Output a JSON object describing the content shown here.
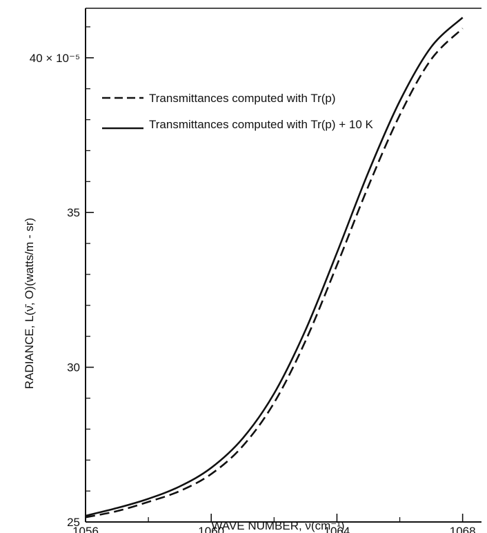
{
  "chart_data": {
    "type": "line",
    "title": "",
    "xlabel": "WAVE NUMBER, ν̄(cm⁻¹)",
    "ylabel": "RADIANCE, L(ν̄, O)(watts/m - sr)",
    "xlim": [
      1056,
      1068.6
    ],
    "ylim": [
      25,
      41.6
    ],
    "x_ticks": [
      1056,
      1060,
      1064,
      1068
    ],
    "x_tick_labels": [
      "1056",
      "1060",
      "1064",
      "1068"
    ],
    "x_minor_ticks": [
      1058,
      1062,
      1066
    ],
    "y_ticks": [
      25,
      30,
      35,
      40
    ],
    "y_tick_labels": [
      "25",
      "30",
      "35",
      "40 × 10⁻⁵"
    ],
    "y_minor_ticks": [
      26,
      27,
      28,
      29,
      31,
      32,
      33,
      34,
      36,
      37,
      38,
      39,
      41
    ],
    "grid": false,
    "legend_position": "upper-left",
    "series": [
      {
        "name": "Transmittances computed with Tr(p)",
        "style": "dashed",
        "color": "#111111",
        "x": [
          1056,
          1057,
          1058,
          1059,
          1060,
          1061,
          1062,
          1063,
          1064,
          1065,
          1066,
          1067,
          1068
        ],
        "y": [
          25.15,
          25.35,
          25.65,
          26.0,
          26.55,
          27.45,
          28.85,
          30.85,
          33.3,
          35.85,
          38.15,
          39.95,
          40.95
        ]
      },
      {
        "name": "Transmittances computed with Tr(p) + 10 K",
        "style": "solid",
        "color": "#111111",
        "x": [
          1056,
          1057,
          1058,
          1059,
          1060,
          1061,
          1062,
          1063,
          1064,
          1065,
          1066,
          1067,
          1068
        ],
        "y": [
          25.2,
          25.45,
          25.75,
          26.15,
          26.75,
          27.7,
          29.15,
          31.2,
          33.7,
          36.3,
          38.6,
          40.35,
          41.3
        ]
      }
    ]
  }
}
